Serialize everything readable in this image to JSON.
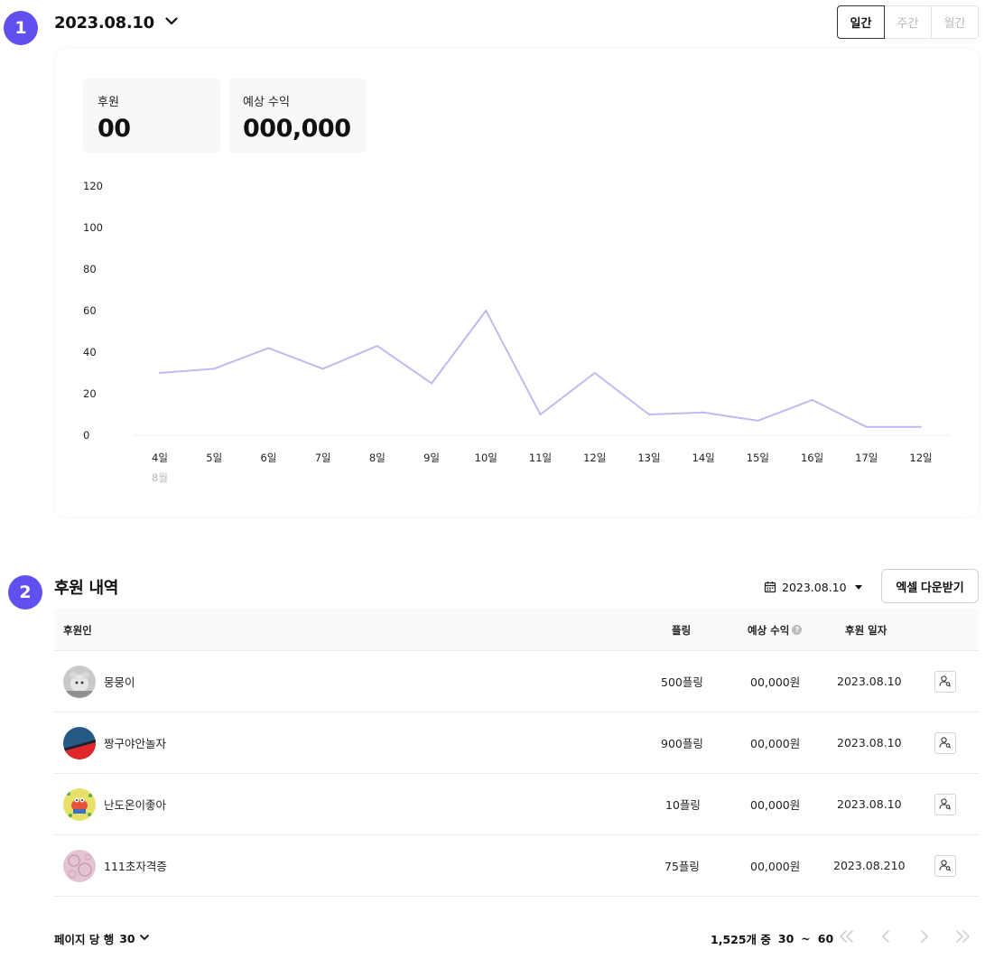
{
  "steps": {
    "first": "1",
    "second": "2"
  },
  "header": {
    "date": "2023.08.10",
    "period_tabs": [
      {
        "label": "일간",
        "active": true
      },
      {
        "label": "주간",
        "active": false
      },
      {
        "label": "월간",
        "active": false
      }
    ]
  },
  "stats": {
    "sponsor_label": "후원",
    "sponsor_value": "00",
    "revenue_label": "예상 수익",
    "revenue_value": "000,000"
  },
  "chart_data": {
    "type": "line",
    "categories": [
      "4일",
      "5일",
      "6일",
      "7일",
      "8일",
      "9일",
      "10일",
      "11일",
      "12일",
      "13일",
      "14일",
      "15일",
      "16일",
      "17일",
      "12일"
    ],
    "month_label": "8월",
    "series": [
      {
        "values": [
          30,
          32,
          42,
          32,
          43,
          25,
          60,
          10,
          30,
          10,
          11,
          7,
          17,
          4,
          4
        ],
        "color": "#c3b8f0"
      }
    ],
    "y_ticks": [
      0,
      20,
      40,
      60,
      80,
      100,
      120
    ],
    "ylim": [
      0,
      120
    ],
    "grid": false
  },
  "history": {
    "title": "후원 내역",
    "date_filter": "2023.08.10",
    "excel_button": "엑셀 다운받기",
    "columns": {
      "sponsor": "후원인",
      "pling": "플링",
      "revenue": "예상 수익",
      "revenue_help": "?",
      "date": "후원 일자"
    },
    "rows": [
      {
        "name": "뭉뭉이",
        "pling": "500플링",
        "revenue": "00,000원",
        "date": "2023.08.10",
        "avatar": "gray-bear"
      },
      {
        "name": "짱구야안놀자",
        "pling": "900플링",
        "revenue": "00,000원",
        "date": "2023.08.10",
        "avatar": "blue-red-ball"
      },
      {
        "name": "난도온이좋아",
        "pling": "10플링",
        "revenue": "00,000원",
        "date": "2023.08.10",
        "avatar": "yellow-crab"
      },
      {
        "name": "111초자격증",
        "pling": "75플링",
        "revenue": "00,000원",
        "date": "2023.08.210",
        "avatar": "pink-pattern"
      }
    ]
  },
  "pagination": {
    "rows_per_page_label": "페이지 당 행",
    "rows_per_page": "30",
    "total": "1,525개 중",
    "range_start": "30",
    "range_sep": "~",
    "range_end": "60"
  }
}
